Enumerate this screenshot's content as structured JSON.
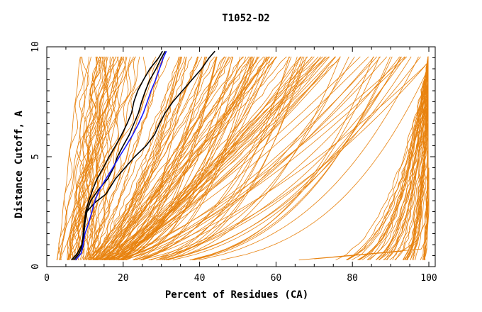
{
  "chart_data": {
    "type": "line",
    "title": "T1052-D2",
    "xlabel": "Percent of Residues (CA)",
    "ylabel": "Distance Cutoff, A",
    "xlim": [
      0,
      100
    ],
    "ylim": [
      0,
      10
    ],
    "x_ticks": [
      0,
      20,
      40,
      60,
      80,
      100
    ],
    "y_ticks": [
      0,
      5,
      10
    ],
    "x_tick_labels": [
      "0",
      "20",
      "40",
      "60",
      "80",
      "100"
    ],
    "y_tick_labels": [
      "0",
      "5",
      "10"
    ],
    "grid": false,
    "legend": "none",
    "colors": {
      "models": "#e8820e",
      "highlight_black": "#000000",
      "highlight_blue": "#1a1aff"
    },
    "highlighted_series": [
      {
        "color": "#000000",
        "points": [
          [
            6.5,
            0.3
          ],
          [
            8,
            0.6
          ],
          [
            9.2,
            1.0
          ],
          [
            9.6,
            1.5
          ],
          [
            9.8,
            2.0
          ],
          [
            10.2,
            2.5
          ],
          [
            11,
            3.0
          ],
          [
            12,
            3.5
          ],
          [
            13.2,
            4.0
          ],
          [
            14.8,
            4.5
          ],
          [
            16.3,
            5.0
          ],
          [
            18,
            5.5
          ],
          [
            19.6,
            6.0
          ],
          [
            21,
            6.5
          ],
          [
            22.2,
            7.0
          ],
          [
            22.8,
            7.5
          ],
          [
            23.8,
            8.0
          ],
          [
            25.3,
            8.5
          ],
          [
            27,
            9.0
          ],
          [
            29.3,
            9.5
          ],
          [
            30.3,
            9.8
          ]
        ]
      },
      {
        "color": "#000000",
        "points": [
          [
            7.5,
            0.3
          ],
          [
            9,
            0.6
          ],
          [
            9.6,
            1.0
          ],
          [
            9.7,
            1.5
          ],
          [
            10,
            2.0
          ],
          [
            10.5,
            2.5
          ],
          [
            11.5,
            3.0
          ],
          [
            13.5,
            3.5
          ],
          [
            16,
            4.0
          ],
          [
            17.5,
            4.5
          ],
          [
            18.5,
            5.0
          ],
          [
            20,
            5.5
          ],
          [
            21.6,
            6.0
          ],
          [
            22.8,
            6.5
          ],
          [
            24,
            7.0
          ],
          [
            24.8,
            7.5
          ],
          [
            25.8,
            8.0
          ],
          [
            27,
            8.5
          ],
          [
            28.6,
            9.0
          ],
          [
            30,
            9.5
          ],
          [
            31,
            9.8
          ]
        ]
      },
      {
        "color": "#000000",
        "points": [
          [
            7,
            0.3
          ],
          [
            8.5,
            0.6
          ],
          [
            9.4,
            1.0
          ],
          [
            9.5,
            1.5
          ],
          [
            9.8,
            2.0
          ],
          [
            10.5,
            2.5
          ],
          [
            12.5,
            2.9
          ],
          [
            15.5,
            3.3
          ],
          [
            18,
            4.0
          ],
          [
            20.5,
            4.5
          ],
          [
            23,
            5.0
          ],
          [
            26,
            5.5
          ],
          [
            28.2,
            6.0
          ],
          [
            29.5,
            6.5
          ],
          [
            31,
            7.0
          ],
          [
            33,
            7.5
          ],
          [
            35.5,
            8.0
          ],
          [
            38,
            8.5
          ],
          [
            40.5,
            9.0
          ],
          [
            42.5,
            9.5
          ],
          [
            44,
            9.8
          ]
        ]
      },
      {
        "color": "#1a1aff",
        "points": [
          [
            7.5,
            0.3
          ],
          [
            9,
            0.6
          ],
          [
            9.5,
            1.0
          ],
          [
            10,
            1.5
          ],
          [
            11,
            2.0
          ],
          [
            11.8,
            2.5
          ],
          [
            12.6,
            3.0
          ],
          [
            13.8,
            3.5
          ],
          [
            15.5,
            4.0
          ],
          [
            17.3,
            4.5
          ],
          [
            19,
            5.0
          ],
          [
            20.8,
            5.5
          ],
          [
            22.5,
            6.0
          ],
          [
            24,
            6.5
          ],
          [
            25.3,
            7.0
          ],
          [
            26.3,
            7.5
          ],
          [
            27.3,
            8.0
          ],
          [
            28.5,
            8.5
          ],
          [
            29.5,
            9.0
          ],
          [
            30.5,
            9.5
          ],
          [
            31.3,
            9.8
          ]
        ]
      }
    ],
    "bottom_outlier_series": [
      {
        "color": "#e8820e",
        "points": [
          [
            66,
            0.3
          ],
          [
            98,
            0.8
          ],
          [
            99.5,
            1.3
          ],
          [
            100,
            2.5
          ],
          [
            100,
            4.5
          ]
        ]
      },
      {
        "color": "#e8820e",
        "points": [
          [
            70,
            0.35
          ],
          [
            93,
            0.7
          ],
          [
            97,
            1.2
          ],
          [
            99,
            2.0
          ],
          [
            99.7,
            3.5
          ]
        ]
      }
    ]
  }
}
